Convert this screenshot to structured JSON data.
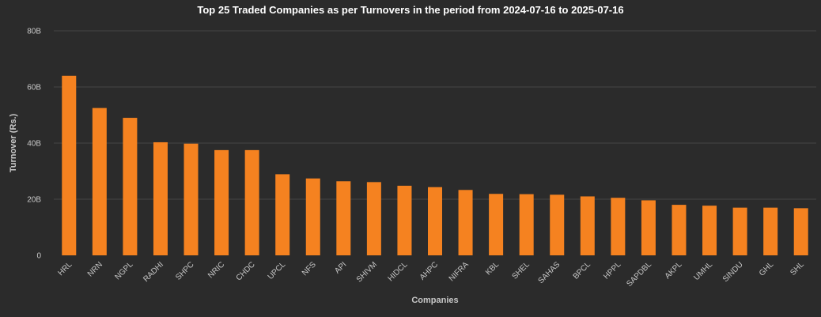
{
  "chart_data": {
    "type": "bar",
    "title": "Top 25 Traded Companies as per Turnovers in the period from 2024-07-16 to 2025-07-16",
    "xlabel": "Companies",
    "ylabel": "Turnover (Rs.)",
    "ylim": [
      0,
      80000000000
    ],
    "yticks": [
      0,
      20000000000,
      40000000000,
      60000000000,
      80000000000
    ],
    "ytick_labels": [
      "0",
      "20B",
      "40B",
      "60B",
      "80B"
    ],
    "grid": true,
    "legend": "none",
    "bar_color": "#f58220",
    "categories": [
      "HRL",
      "NRN",
      "NGPL",
      "RADHI",
      "SHPC",
      "NRIC",
      "CHDC",
      "UPCL",
      "NFS",
      "API",
      "SHIVM",
      "HIDCL",
      "AHPC",
      "NIFRA",
      "KBL",
      "SHEL",
      "SAHAS",
      "BPCL",
      "HPPL",
      "SAPDBL",
      "AKPL",
      "UMHL",
      "SINDU",
      "GHL",
      "SHL"
    ],
    "values": [
      64000000000,
      52500000000,
      49000000000,
      40300000000,
      39800000000,
      37500000000,
      37500000000,
      28900000000,
      27400000000,
      26400000000,
      26100000000,
      24800000000,
      24300000000,
      23300000000,
      21900000000,
      21800000000,
      21600000000,
      21000000000,
      20500000000,
      19600000000,
      18000000000,
      17700000000,
      17000000000,
      17000000000,
      16800000000
    ]
  }
}
